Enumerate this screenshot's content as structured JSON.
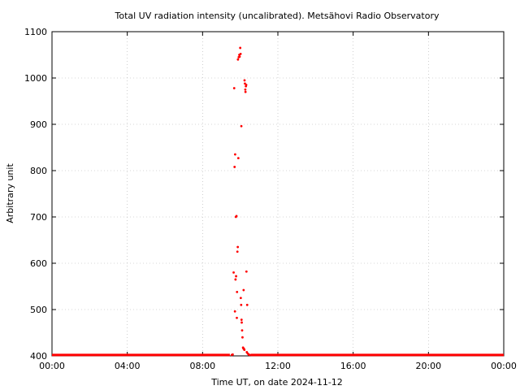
{
  "chart_data": {
    "type": "scatter",
    "title": "Total UV radiation intensity (uncalibrated). Metsähovi Radio Observatory",
    "xlabel": "Time UT, on date 2024-11-12",
    "ylabel": "Arbitrary unit",
    "x_unit": "hours",
    "xlim": [
      0,
      24
    ],
    "ylim": [
      400,
      1100
    ],
    "x_ticks": [
      {
        "value": 0,
        "label": "00:00"
      },
      {
        "value": 4,
        "label": "04:00"
      },
      {
        "value": 8,
        "label": "08:00"
      },
      {
        "value": 12,
        "label": "12:00"
      },
      {
        "value": 16,
        "label": "16:00"
      },
      {
        "value": 20,
        "label": "20:00"
      },
      {
        "value": 24,
        "label": "00:00"
      }
    ],
    "y_ticks": [
      {
        "value": 400,
        "label": "400"
      },
      {
        "value": 500,
        "label": "500"
      },
      {
        "value": 600,
        "label": "600"
      },
      {
        "value": 700,
        "label": "700"
      },
      {
        "value": 800,
        "label": "800"
      },
      {
        "value": 900,
        "label": "900"
      },
      {
        "value": 1000,
        "label": "1000"
      },
      {
        "value": 1100,
        "label": "1100"
      }
    ],
    "grid": true,
    "legend": "none",
    "marker_color": "#ff0000",
    "baseline": {
      "value": 402,
      "x_ranges": [
        [
          0,
          9.45
        ],
        [
          10.55,
          24
        ]
      ]
    },
    "series": [
      {
        "color": "#ff0000",
        "points": [
          {
            "x": 9.55,
            "y": 402
          },
          {
            "x": 9.6,
            "y": 403
          },
          {
            "x": 9.65,
            "y": 580
          },
          {
            "x": 9.68,
            "y": 978
          },
          {
            "x": 9.7,
            "y": 808
          },
          {
            "x": 9.72,
            "y": 496
          },
          {
            "x": 9.73,
            "y": 835
          },
          {
            "x": 9.75,
            "y": 565
          },
          {
            "x": 9.77,
            "y": 700
          },
          {
            "x": 9.78,
            "y": 572
          },
          {
            "x": 9.8,
            "y": 702
          },
          {
            "x": 9.82,
            "y": 482
          },
          {
            "x": 9.83,
            "y": 538
          },
          {
            "x": 9.85,
            "y": 625
          },
          {
            "x": 9.87,
            "y": 635
          },
          {
            "x": 9.88,
            "y": 1040
          },
          {
            "x": 9.9,
            "y": 827
          },
          {
            "x": 9.92,
            "y": 1045
          },
          {
            "x": 9.95,
            "y": 1050
          },
          {
            "x": 9.97,
            "y": 1046
          },
          {
            "x": 10.0,
            "y": 1065
          },
          {
            "x": 10.02,
            "y": 1052
          },
          {
            "x": 10.03,
            "y": 525
          },
          {
            "x": 10.05,
            "y": 510
          },
          {
            "x": 10.06,
            "y": 896
          },
          {
            "x": 10.07,
            "y": 478
          },
          {
            "x": 10.08,
            "y": 472
          },
          {
            "x": 10.1,
            "y": 455
          },
          {
            "x": 10.12,
            "y": 440
          },
          {
            "x": 10.15,
            "y": 418
          },
          {
            "x": 10.17,
            "y": 416
          },
          {
            "x": 10.18,
            "y": 542
          },
          {
            "x": 10.2,
            "y": 415
          },
          {
            "x": 10.22,
            "y": 413
          },
          {
            "x": 10.23,
            "y": 995
          },
          {
            "x": 10.25,
            "y": 988
          },
          {
            "x": 10.27,
            "y": 975
          },
          {
            "x": 10.28,
            "y": 970
          },
          {
            "x": 10.3,
            "y": 982
          },
          {
            "x": 10.32,
            "y": 985
          },
          {
            "x": 10.33,
            "y": 582
          },
          {
            "x": 10.35,
            "y": 408
          },
          {
            "x": 10.37,
            "y": 510
          },
          {
            "x": 10.4,
            "y": 405
          },
          {
            "x": 10.45,
            "y": 403
          },
          {
            "x": 10.5,
            "y": 402
          }
        ]
      }
    ]
  }
}
